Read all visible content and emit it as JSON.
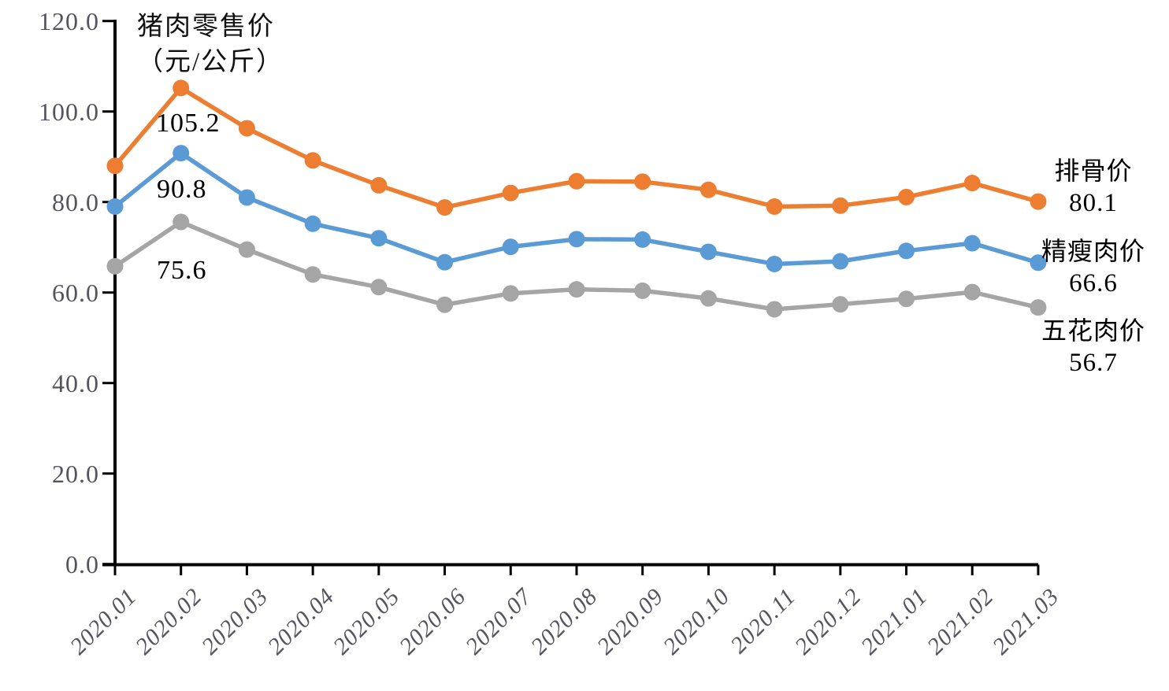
{
  "chart_data": {
    "type": "line",
    "title": "猪肉零售价",
    "title_unit": "（元/公斤）",
    "categories": [
      "2020.01",
      "2020.02",
      "2020.03",
      "2020.04",
      "2020.05",
      "2020.06",
      "2020.07",
      "2020.08",
      "2020.09",
      "2020.10",
      "2020.11",
      "2020.12",
      "2021.01",
      "2021.02",
      "2021.03"
    ],
    "series": [
      {
        "name": "排骨价",
        "color": "#ED7D31",
        "values": [
          88.0,
          105.2,
          96.3,
          89.2,
          83.7,
          78.8,
          82.0,
          84.6,
          84.5,
          82.7,
          79.0,
          79.2,
          81.1,
          84.2,
          80.1
        ],
        "end_label": "80.1"
      },
      {
        "name": "精瘦肉价",
        "color": "#5B9BD5",
        "values": [
          79.0,
          90.8,
          81.0,
          75.2,
          72.0,
          66.7,
          70.1,
          71.8,
          71.7,
          69.0,
          66.3,
          66.9,
          69.2,
          70.9,
          66.6
        ],
        "end_label": "66.6"
      },
      {
        "name": "五花肉价",
        "color": "#A5A5A5",
        "values": [
          65.8,
          75.6,
          69.5,
          64.0,
          61.2,
          57.3,
          59.8,
          60.7,
          60.4,
          58.7,
          56.3,
          57.4,
          58.6,
          60.1,
          56.7
        ],
        "end_label": "56.7"
      }
    ],
    "point_labels": [
      {
        "series": "排骨价",
        "category": "2020.02",
        "text": "105.2"
      },
      {
        "series": "精瘦肉价",
        "category": "2020.02",
        "text": "90.8"
      },
      {
        "series": "五花肉价",
        "category": "2020.02",
        "text": "75.6"
      }
    ],
    "y_ticks": [
      "120.0",
      "100.0",
      "80.0",
      "60.0",
      "40.0",
      "20.0",
      "0.0"
    ],
    "y_tick_values": [
      120,
      100,
      80,
      60,
      40,
      20,
      0
    ],
    "ylim": [
      0,
      120
    ],
    "xlabel": "",
    "ylabel": "",
    "grid": false,
    "legend_position": "inline-right-of-last-point",
    "axis_color": "#000000",
    "tick_label_color": "#54545e",
    "background": "#ffffff"
  }
}
